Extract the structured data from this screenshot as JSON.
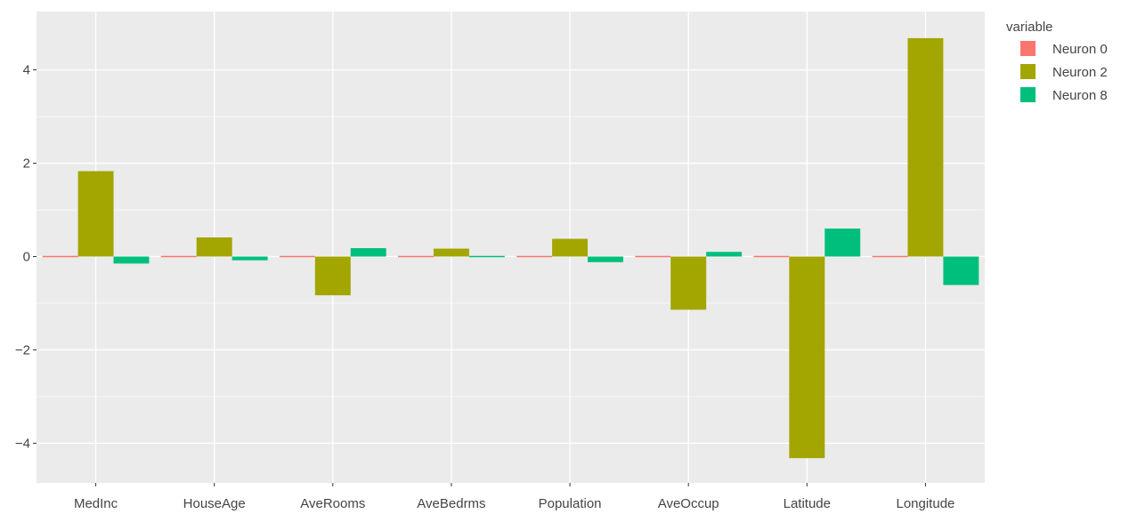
{
  "chart_data": {
    "type": "bar",
    "categories": [
      "MedInc",
      "HouseAge",
      "AveRooms",
      "AveBedrms",
      "Population",
      "AveOccup",
      "Latitude",
      "Longitude"
    ],
    "series": [
      {
        "name": "Neuron 0",
        "color": "#F8766D",
        "values": [
          0,
          0,
          0,
          0,
          0,
          0,
          0,
          0
        ]
      },
      {
        "name": "Neuron 2",
        "color": "#A3A500",
        "values": [
          1.83,
          0.41,
          -0.83,
          0.17,
          0.38,
          -1.14,
          -4.32,
          4.68
        ]
      },
      {
        "name": "Neuron 8",
        "color": "#00BF7D",
        "values": [
          -0.15,
          -0.08,
          0.18,
          -0.02,
          -0.12,
          0.1,
          0.6,
          -0.61
        ]
      }
    ],
    "y_ticks": [
      -4,
      -2,
      0,
      2,
      4
    ],
    "y_tick_labels": [
      "−4",
      "−2",
      "0",
      "2",
      "4"
    ],
    "ylim": [
      -4.85,
      5.25
    ],
    "legend": {
      "title": "variable",
      "position": "right"
    },
    "colors": {
      "panel_bg": "#EBEBEB",
      "grid": "#FFFFFF"
    },
    "grid": true
  }
}
